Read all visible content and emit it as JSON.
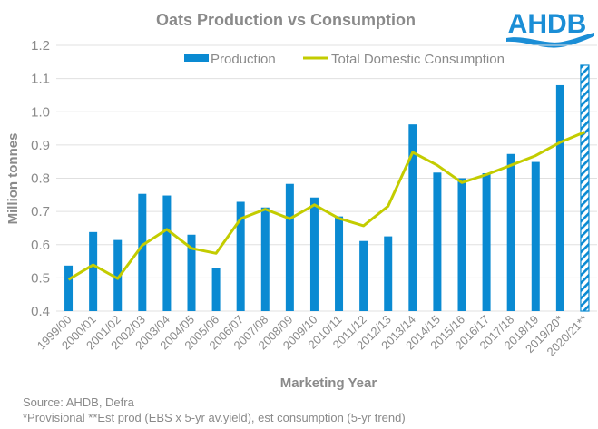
{
  "logo": {
    "text": "AHDB",
    "color": "#1b8ed6"
  },
  "chart_data": {
    "type": "bar",
    "title": "Oats Production vs Consumption",
    "xlabel": "Marketing Year",
    "ylabel": "Million tonnes",
    "ylim": [
      0.4,
      1.2
    ],
    "yticks": [
      0.4,
      0.5,
      0.6,
      0.7,
      0.8,
      0.9,
      1.0,
      1.1,
      1.2
    ],
    "ytick_labels": [
      "0.4",
      "0.5",
      "0.6",
      "0.7",
      "0.8",
      "0.9",
      "1.0",
      "1.1",
      "1.2"
    ],
    "grid": true,
    "legend_position": "top",
    "categories": [
      "1999/00",
      "2000/01",
      "2001/02",
      "2002/03",
      "2003/04",
      "2004/05",
      "2005/06",
      "2006/07",
      "2007/08",
      "2008/09",
      "2009/10",
      "2010/11",
      "2011/12",
      "2012/13",
      "2013/14",
      "2014/15",
      "2015/16",
      "2016/17",
      "2017/18",
      "2018/19",
      "2019/20*",
      "2020/21**"
    ],
    "series": [
      {
        "name": "Production",
        "type": "bar",
        "color": "#0a8ad2",
        "values": [
          0.537,
          0.638,
          0.614,
          0.753,
          0.748,
          0.63,
          0.531,
          0.729,
          0.712,
          0.783,
          0.742,
          0.685,
          0.611,
          0.625,
          0.962,
          0.817,
          0.8,
          0.815,
          0.873,
          0.849,
          1.08,
          1.14
        ],
        "hatched": [
          false,
          false,
          false,
          false,
          false,
          false,
          false,
          false,
          false,
          false,
          false,
          false,
          false,
          false,
          false,
          false,
          false,
          false,
          false,
          false,
          false,
          true
        ]
      },
      {
        "name": "Total Domestic Consumption",
        "type": "line",
        "color": "#c3cc00",
        "values": [
          0.495,
          0.539,
          0.498,
          0.598,
          0.646,
          0.589,
          0.574,
          0.678,
          0.707,
          0.678,
          0.72,
          0.679,
          0.657,
          0.716,
          0.878,
          0.839,
          0.787,
          0.811,
          0.839,
          0.868,
          0.908,
          0.939
        ]
      }
    ],
    "notes": [
      "Source: AHDB, Defra",
      "*Provisional **Est prod (EBS x 5-yr av.yield), est consumption (5-yr trend)"
    ]
  }
}
